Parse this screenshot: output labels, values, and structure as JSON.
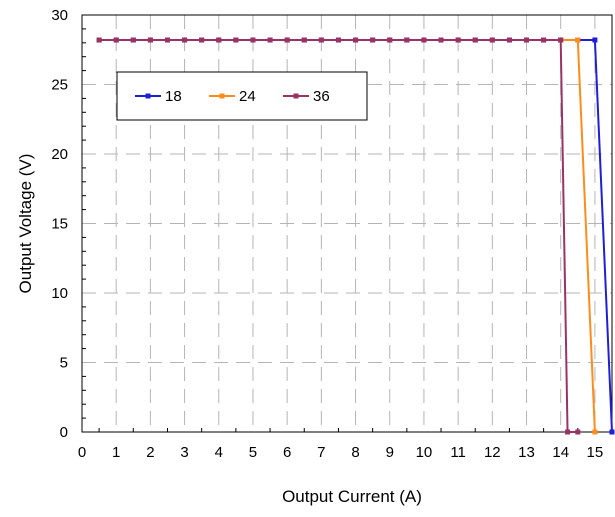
{
  "chart_data": {
    "type": "line",
    "title": "",
    "xlabel": "Output Current (A)",
    "ylabel": "Output Voltage (V)",
    "xlim": [
      0,
      15.5
    ],
    "ylim": [
      0,
      30
    ],
    "x_ticks": [
      0,
      1,
      2,
      3,
      4,
      5,
      6,
      7,
      8,
      9,
      10,
      11,
      12,
      13,
      14,
      15
    ],
    "y_ticks": [
      0,
      5,
      10,
      15,
      20,
      25,
      30
    ],
    "x_tick_labels": [
      "0",
      "1",
      "2",
      "3",
      "4",
      "5",
      "6",
      "7",
      "8",
      "9",
      "10",
      "11",
      "12",
      "13",
      "14",
      "15"
    ],
    "y_tick_labels": [
      "0",
      "5",
      "10",
      "15",
      "20",
      "25",
      "30"
    ],
    "grid": true,
    "legend_position": "top-left",
    "series": [
      {
        "name": "18",
        "color": "#1f1fd6",
        "marker": "square",
        "points": [
          [
            0.5,
            28.2
          ],
          [
            1,
            28.2
          ],
          [
            1.5,
            28.2
          ],
          [
            2,
            28.2
          ],
          [
            2.5,
            28.2
          ],
          [
            3,
            28.2
          ],
          [
            3.5,
            28.2
          ],
          [
            4,
            28.2
          ],
          [
            4.5,
            28.2
          ],
          [
            5,
            28.2
          ],
          [
            5.5,
            28.2
          ],
          [
            6,
            28.2
          ],
          [
            6.5,
            28.2
          ],
          [
            7,
            28.2
          ],
          [
            7.5,
            28.2
          ],
          [
            8,
            28.2
          ],
          [
            8.5,
            28.2
          ],
          [
            9,
            28.2
          ],
          [
            9.5,
            28.2
          ],
          [
            10,
            28.2
          ],
          [
            10.5,
            28.2
          ],
          [
            11,
            28.2
          ],
          [
            11.5,
            28.2
          ],
          [
            12,
            28.2
          ],
          [
            12.5,
            28.2
          ],
          [
            13,
            28.2
          ],
          [
            13.5,
            28.2
          ],
          [
            14,
            28.2
          ],
          [
            14.5,
            28.2
          ],
          [
            15,
            28.2
          ],
          [
            15.5,
            0
          ]
        ]
      },
      {
        "name": "24",
        "color": "#ff8c1a",
        "marker": "square",
        "points": [
          [
            0.5,
            28.2
          ],
          [
            1,
            28.2
          ],
          [
            2,
            28.2
          ],
          [
            3,
            28.2
          ],
          [
            4,
            28.2
          ],
          [
            5,
            28.2
          ],
          [
            6,
            28.2
          ],
          [
            7,
            28.2
          ],
          [
            8,
            28.2
          ],
          [
            9,
            28.2
          ],
          [
            10,
            28.2
          ],
          [
            11,
            28.2
          ],
          [
            12,
            28.2
          ],
          [
            13,
            28.2
          ],
          [
            14,
            28.2
          ],
          [
            14.5,
            28.2
          ],
          [
            15,
            0
          ]
        ]
      },
      {
        "name": "36",
        "color": "#993366",
        "marker": "square",
        "points": [
          [
            0.5,
            28.2
          ],
          [
            1,
            28.2
          ],
          [
            1.5,
            28.2
          ],
          [
            2,
            28.2
          ],
          [
            2.5,
            28.2
          ],
          [
            3,
            28.2
          ],
          [
            3.5,
            28.2
          ],
          [
            4,
            28.2
          ],
          [
            4.5,
            28.2
          ],
          [
            5,
            28.2
          ],
          [
            5.5,
            28.2
          ],
          [
            6,
            28.2
          ],
          [
            6.5,
            28.2
          ],
          [
            7,
            28.2
          ],
          [
            7.5,
            28.2
          ],
          [
            8,
            28.2
          ],
          [
            8.5,
            28.2
          ],
          [
            9,
            28.2
          ],
          [
            9.5,
            28.2
          ],
          [
            10,
            28.2
          ],
          [
            10.5,
            28.2
          ],
          [
            11,
            28.2
          ],
          [
            11.5,
            28.2
          ],
          [
            12,
            28.2
          ],
          [
            12.5,
            28.2
          ],
          [
            13,
            28.2
          ],
          [
            13.5,
            28.2
          ],
          [
            14,
            28.2
          ],
          [
            14.2,
            0
          ],
          [
            14.5,
            0
          ]
        ]
      }
    ]
  }
}
